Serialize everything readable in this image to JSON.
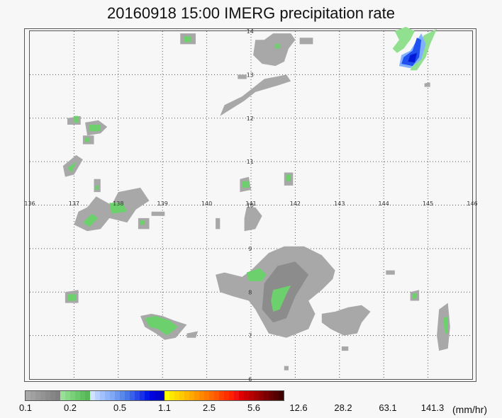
{
  "title": "20160918 15:00  IMERG precipitation rate",
  "map": {
    "lon_ticks": [
      "136",
      "137",
      "138",
      "139",
      "140",
      "141",
      "142",
      "143",
      "144",
      "145",
      "146"
    ],
    "lat_ticks": [
      "6",
      "7",
      "8",
      "9",
      "10",
      "11",
      "12",
      "13",
      "14"
    ],
    "lon_range": [
      136,
      146
    ],
    "lat_range": [
      6,
      14
    ],
    "grid": "dotted"
  },
  "colorbar": {
    "colors": [
      "#a8a8a8",
      "#a0a0a0",
      "#999999",
      "#939393",
      "#8c8c8c",
      "#868686",
      "#808080",
      "#98e098",
      "#88d888",
      "#78d078",
      "#6cc86c",
      "#60c060",
      "#58b858",
      "#d0e0ff",
      "#b8d0ff",
      "#a0c0ff",
      "#90b4f8",
      "#80a8f4",
      "#6c98f0",
      "#5888ec",
      "#4878e8",
      "#3860e8",
      "#2848e8",
      "#1830e8",
      "#0018e8",
      "#0000e0",
      "#0000d0",
      "#0000c0",
      "#ffff00",
      "#ffe800",
      "#ffd800",
      "#ffc800",
      "#ffb800",
      "#ffa800",
      "#ff9800",
      "#ff8800",
      "#ff7800",
      "#ff6800",
      "#ff5800",
      "#ff4000",
      "#ff3000",
      "#ff2000",
      "#f01010",
      "#e00000",
      "#cc0000",
      "#b80000",
      "#a40000",
      "#900000",
      "#7c0000",
      "#680000",
      "#540000",
      "#400000"
    ],
    "labels": [
      {
        "text": "0.1",
        "index": 0
      },
      {
        "text": "0.2",
        "index": 9
      },
      {
        "text": "0.5",
        "index": 19
      },
      {
        "text": "1.1",
        "index": 28
      },
      {
        "text": "2.5",
        "index": 37
      },
      {
        "text": "5.6",
        "index": 46
      },
      {
        "text": "12.6",
        "index": 55
      },
      {
        "text": "28.2",
        "index": 64
      },
      {
        "text": "63.1",
        "index": 73
      },
      {
        "text": "141.3",
        "index": 82
      }
    ],
    "unit": "(mm/hr)"
  },
  "colors": {
    "gray": "#a8a8a8",
    "gray_dark": "#8c8c8c",
    "green": "#6cd06c",
    "green_light": "#90e090",
    "blue_light": "#80b0ff",
    "blue": "#2050f0",
    "blue_dark": "#0018d8"
  }
}
